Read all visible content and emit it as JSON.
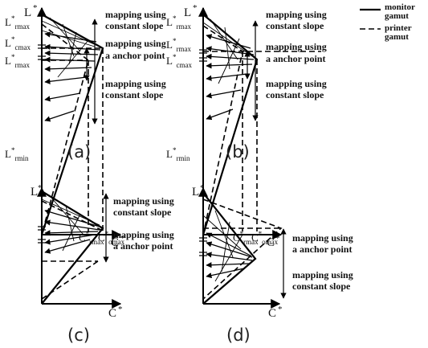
{
  "legend": {
    "monitor_line1": "monitor",
    "monitor_line2": "gamut",
    "printer_line1": "printer",
    "printer_line2": "gamut"
  },
  "axis": {
    "L": "L",
    "C": "C",
    "star": "*"
  },
  "labels": {
    "rmax_L": "L",
    "rmax_sub": "rmax",
    "cmax_L": "L",
    "cmax_sub": "cmax",
    "min_L": "L",
    "min_sub": "rmin",
    "C_rmax": "C",
    "C_rmax_sub": "rmax",
    "C_omax": "C",
    "C_omax_sub": "omax"
  },
  "text": {
    "constant_slope_1": "mapping using",
    "constant_slope_2": "constant slope",
    "anchor_1": "mapping using",
    "anchor_2": "a anchor point"
  },
  "captions": [
    "(a)",
    "(b)",
    "(c)",
    "(d)"
  ]
}
